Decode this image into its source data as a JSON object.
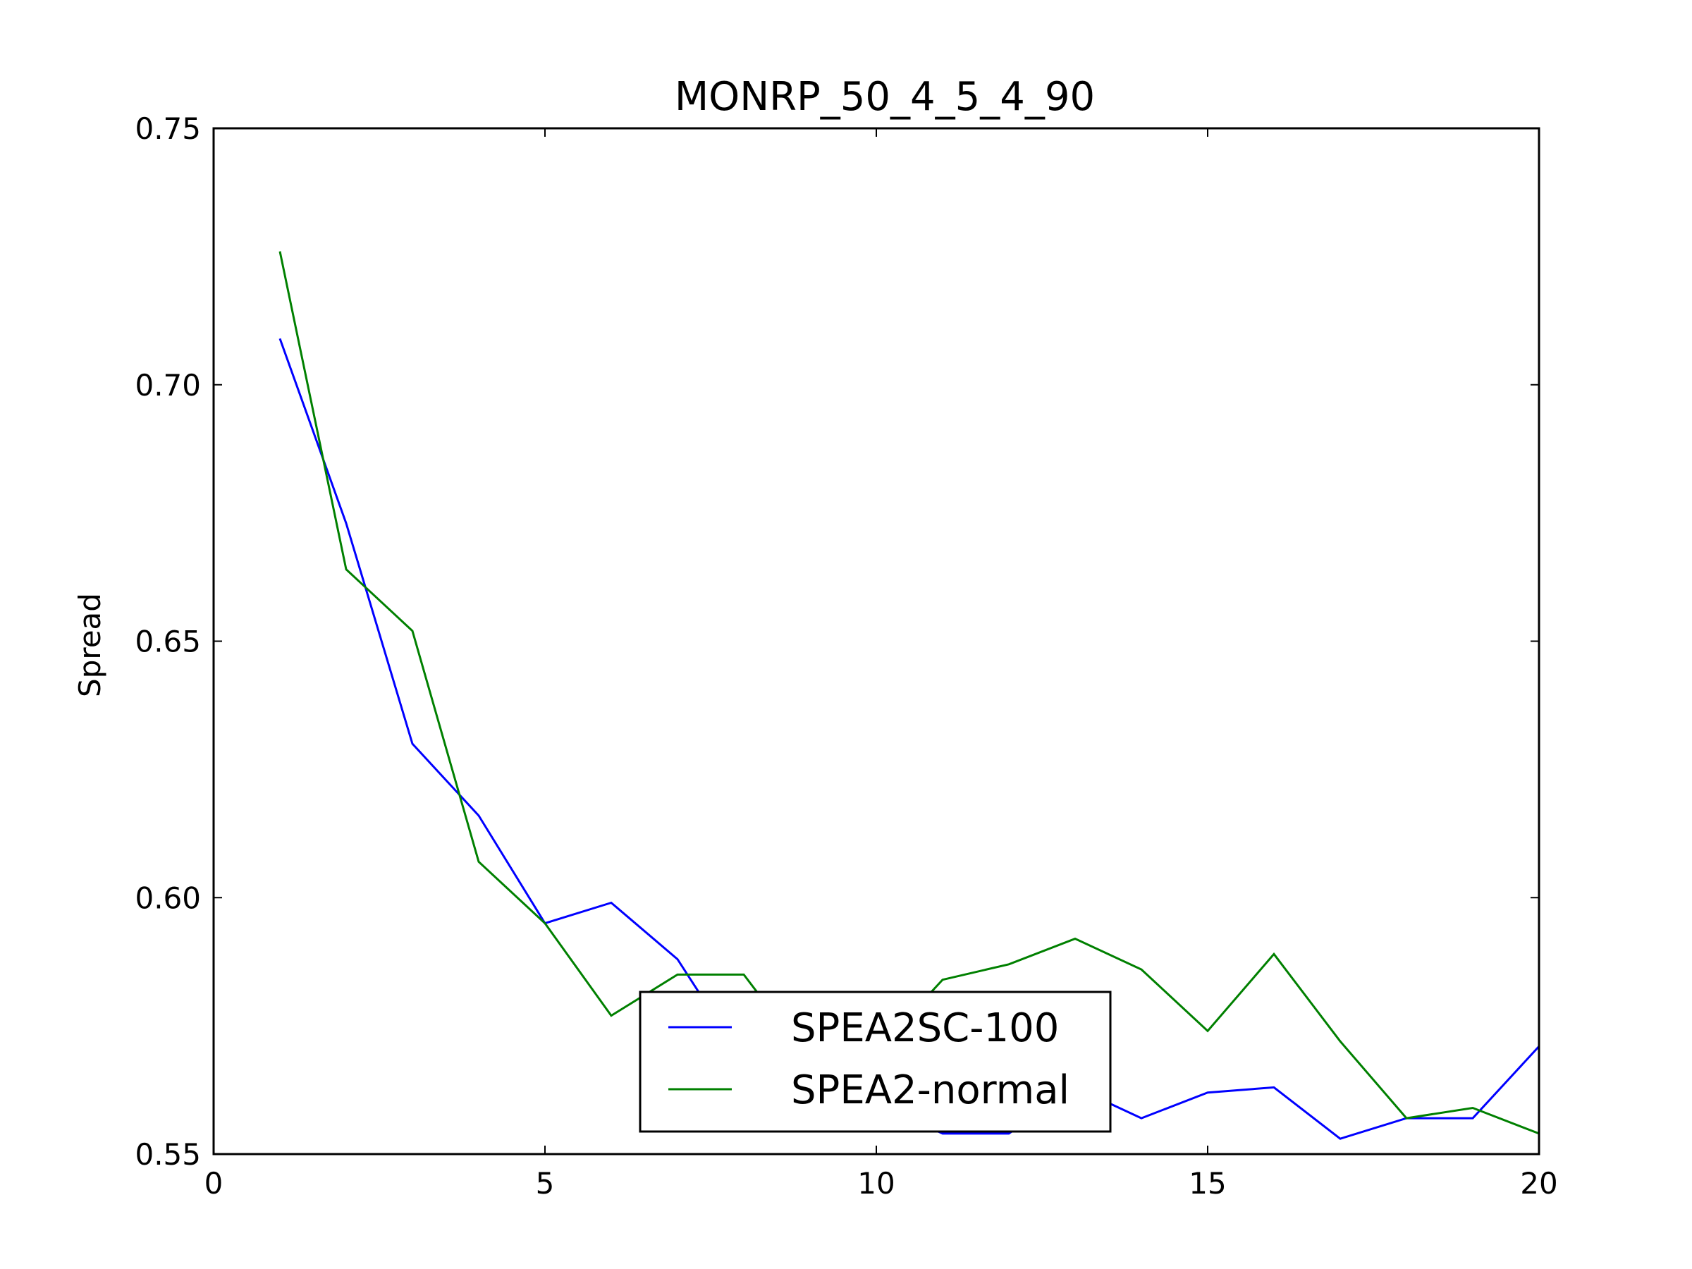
{
  "chart_data": {
    "type": "line",
    "title": "MONRP_50_4_5_4_90",
    "xlabel": "",
    "ylabel": "Spread",
    "xlim": [
      0,
      20
    ],
    "ylim": [
      0.55,
      0.75
    ],
    "x_ticks": [
      "0",
      "5",
      "10",
      "15",
      "20"
    ],
    "y_ticks": [
      "0.55",
      "0.60",
      "0.65",
      "0.70",
      "0.75"
    ],
    "grid": false,
    "legend_position": "lower-center",
    "series": [
      {
        "name": "SPEA2SC-100",
        "color": "#0000ff",
        "x": [
          1,
          2,
          3,
          4,
          5,
          6,
          7,
          8,
          9,
          10,
          11,
          12,
          13,
          14,
          15,
          16,
          17,
          18,
          19,
          20
        ],
        "y": [
          0.709,
          0.673,
          0.63,
          0.616,
          0.595,
          0.599,
          0.588,
          0.568,
          0.564,
          0.56,
          0.554,
          0.554,
          0.563,
          0.557,
          0.562,
          0.563,
          0.553,
          0.557,
          0.557,
          0.571
        ]
      },
      {
        "name": "SPEA2-normal",
        "color": "#008000",
        "x": [
          1,
          2,
          3,
          4,
          5,
          6,
          7,
          8,
          9,
          10,
          11,
          12,
          13,
          14,
          15,
          16,
          17,
          18,
          19,
          20
        ],
        "y": [
          0.726,
          0.664,
          0.652,
          0.607,
          0.595,
          0.577,
          0.585,
          0.585,
          0.568,
          0.57,
          0.584,
          0.587,
          0.592,
          0.586,
          0.574,
          0.589,
          0.572,
          0.557,
          0.559,
          0.554
        ]
      }
    ]
  }
}
